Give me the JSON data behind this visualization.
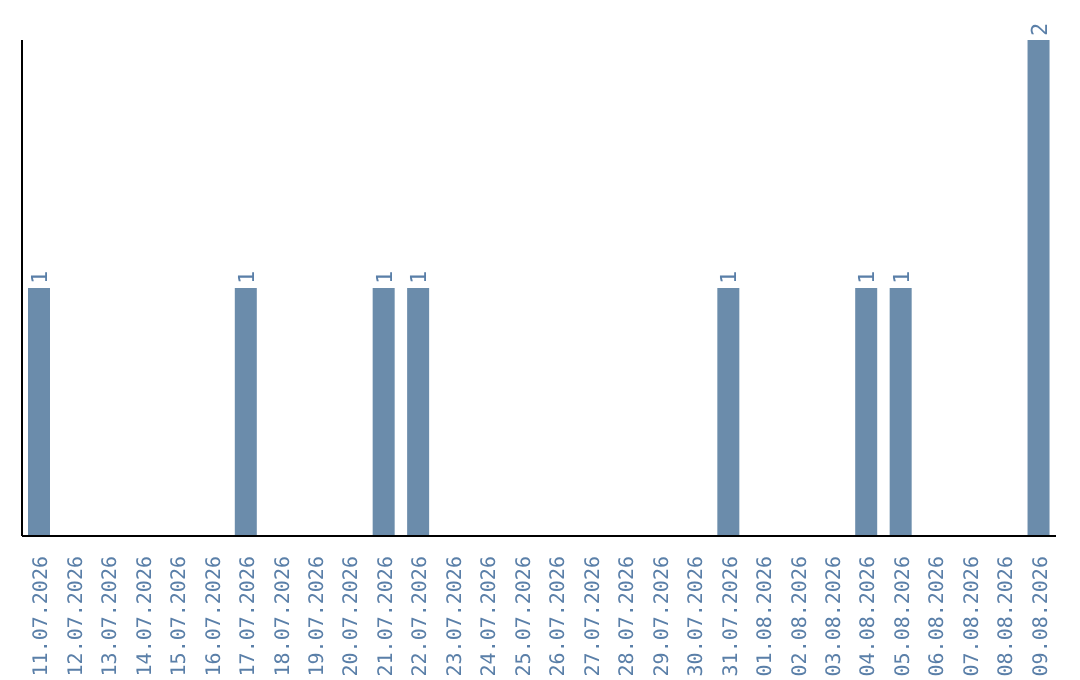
{
  "chart_data": {
    "type": "bar",
    "categories": [
      "11.07.2026",
      "12.07.2026",
      "13.07.2026",
      "14.07.2026",
      "15.07.2026",
      "16.07.2026",
      "17.07.2026",
      "18.07.2026",
      "19.07.2026",
      "20.07.2026",
      "21.07.2026",
      "22.07.2026",
      "23.07.2026",
      "24.07.2026",
      "25.07.2026",
      "26.07.2026",
      "27.07.2026",
      "28.07.2026",
      "29.07.2026",
      "30.07.2026",
      "31.07.2026",
      "01.08.2026",
      "02.08.2026",
      "03.08.2026",
      "04.08.2026",
      "05.08.2026",
      "06.08.2026",
      "07.08.2026",
      "08.08.2026",
      "09.08.2026"
    ],
    "values": [
      1,
      0,
      0,
      0,
      0,
      0,
      1,
      0,
      0,
      0,
      1,
      1,
      0,
      0,
      0,
      0,
      0,
      0,
      0,
      0,
      1,
      0,
      0,
      0,
      1,
      1,
      0,
      0,
      0,
      2
    ],
    "value_labels": [
      "1",
      null,
      null,
      null,
      null,
      null,
      "1",
      null,
      null,
      null,
      "1",
      "1",
      null,
      null,
      null,
      null,
      null,
      null,
      null,
      null,
      "1",
      null,
      null,
      null,
      "1",
      "1",
      null,
      null,
      null,
      "2"
    ],
    "color": "#6b8cab",
    "tick_labels": "x",
    "grid": false,
    "legend": false
  }
}
